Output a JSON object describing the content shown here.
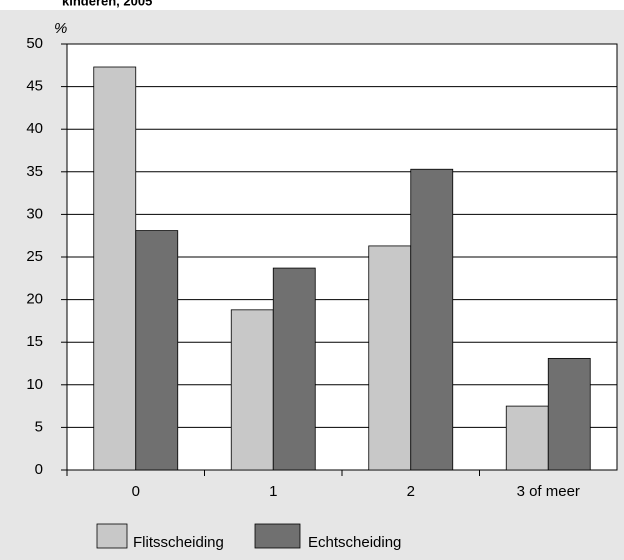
{
  "chart_data": {
    "type": "bar",
    "title": "kinderen, 2005",
    "y_label": "%",
    "categories": [
      "0",
      "1",
      "2",
      "3 of meer"
    ],
    "series": [
      {
        "name": "Flitsscheiding",
        "color": "#c8c8c8",
        "values": [
          47.3,
          18.8,
          26.3,
          7.5
        ]
      },
      {
        "name": "Echtscheiding",
        "color": "#707070",
        "values": [
          28.1,
          23.7,
          35.3,
          13.1
        ]
      }
    ],
    "ylim": [
      0,
      50
    ],
    "yticks": [
      0,
      5,
      10,
      15,
      20,
      25,
      30,
      35,
      40,
      45,
      50
    ],
    "grid": true
  }
}
